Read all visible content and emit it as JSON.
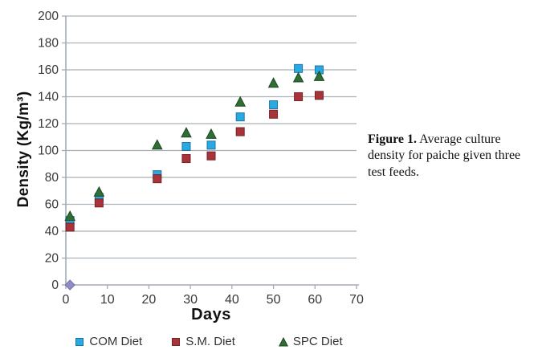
{
  "figure": {
    "caption_label": "Figure 1.",
    "caption_text": " Average culture density for paiche given three test feeds."
  },
  "chart_data": {
    "type": "scatter",
    "title": "",
    "xlabel": "Days",
    "ylabel": "Density (Kg/m³)",
    "xlim": [
      0,
      70
    ],
    "ylim": [
      0,
      200
    ],
    "x_ticks": [
      0,
      10,
      20,
      30,
      40,
      50,
      60,
      70
    ],
    "y_ticks": [
      0,
      20,
      40,
      60,
      80,
      100,
      120,
      140,
      160,
      180,
      200
    ],
    "grid": "horizontal-only",
    "legend_position": "bottom",
    "axis_color": "#a3abb4",
    "gridline_color": "#a8b0b8",
    "x": [
      1,
      8,
      22,
      29,
      35,
      42,
      50,
      56,
      61
    ],
    "series": [
      {
        "name": "COM Diet",
        "marker": "square",
        "color": "#29a9e1",
        "border": "#1f74a6",
        "values": [
          48,
          65,
          82,
          103,
          104,
          125,
          134,
          161,
          160
        ]
      },
      {
        "name": "S.M. Diet",
        "marker": "square",
        "color": "#a8343a",
        "border": "#762226",
        "values": [
          43,
          61,
          79,
          94,
          96,
          114,
          127,
          140,
          141
        ]
      },
      {
        "name": "SPC Diet",
        "marker": "triangle",
        "color": "#2f6e35",
        "border": "#1d4722",
        "values": [
          51,
          69,
          104,
          113,
          112,
          136,
          150,
          154,
          155
        ]
      }
    ],
    "extra_points": [
      {
        "x": 1,
        "y": 0,
        "marker": "diamond",
        "color": "#8e8ec5",
        "border": "#7474ad",
        "name": "origin-diamond"
      }
    ]
  }
}
